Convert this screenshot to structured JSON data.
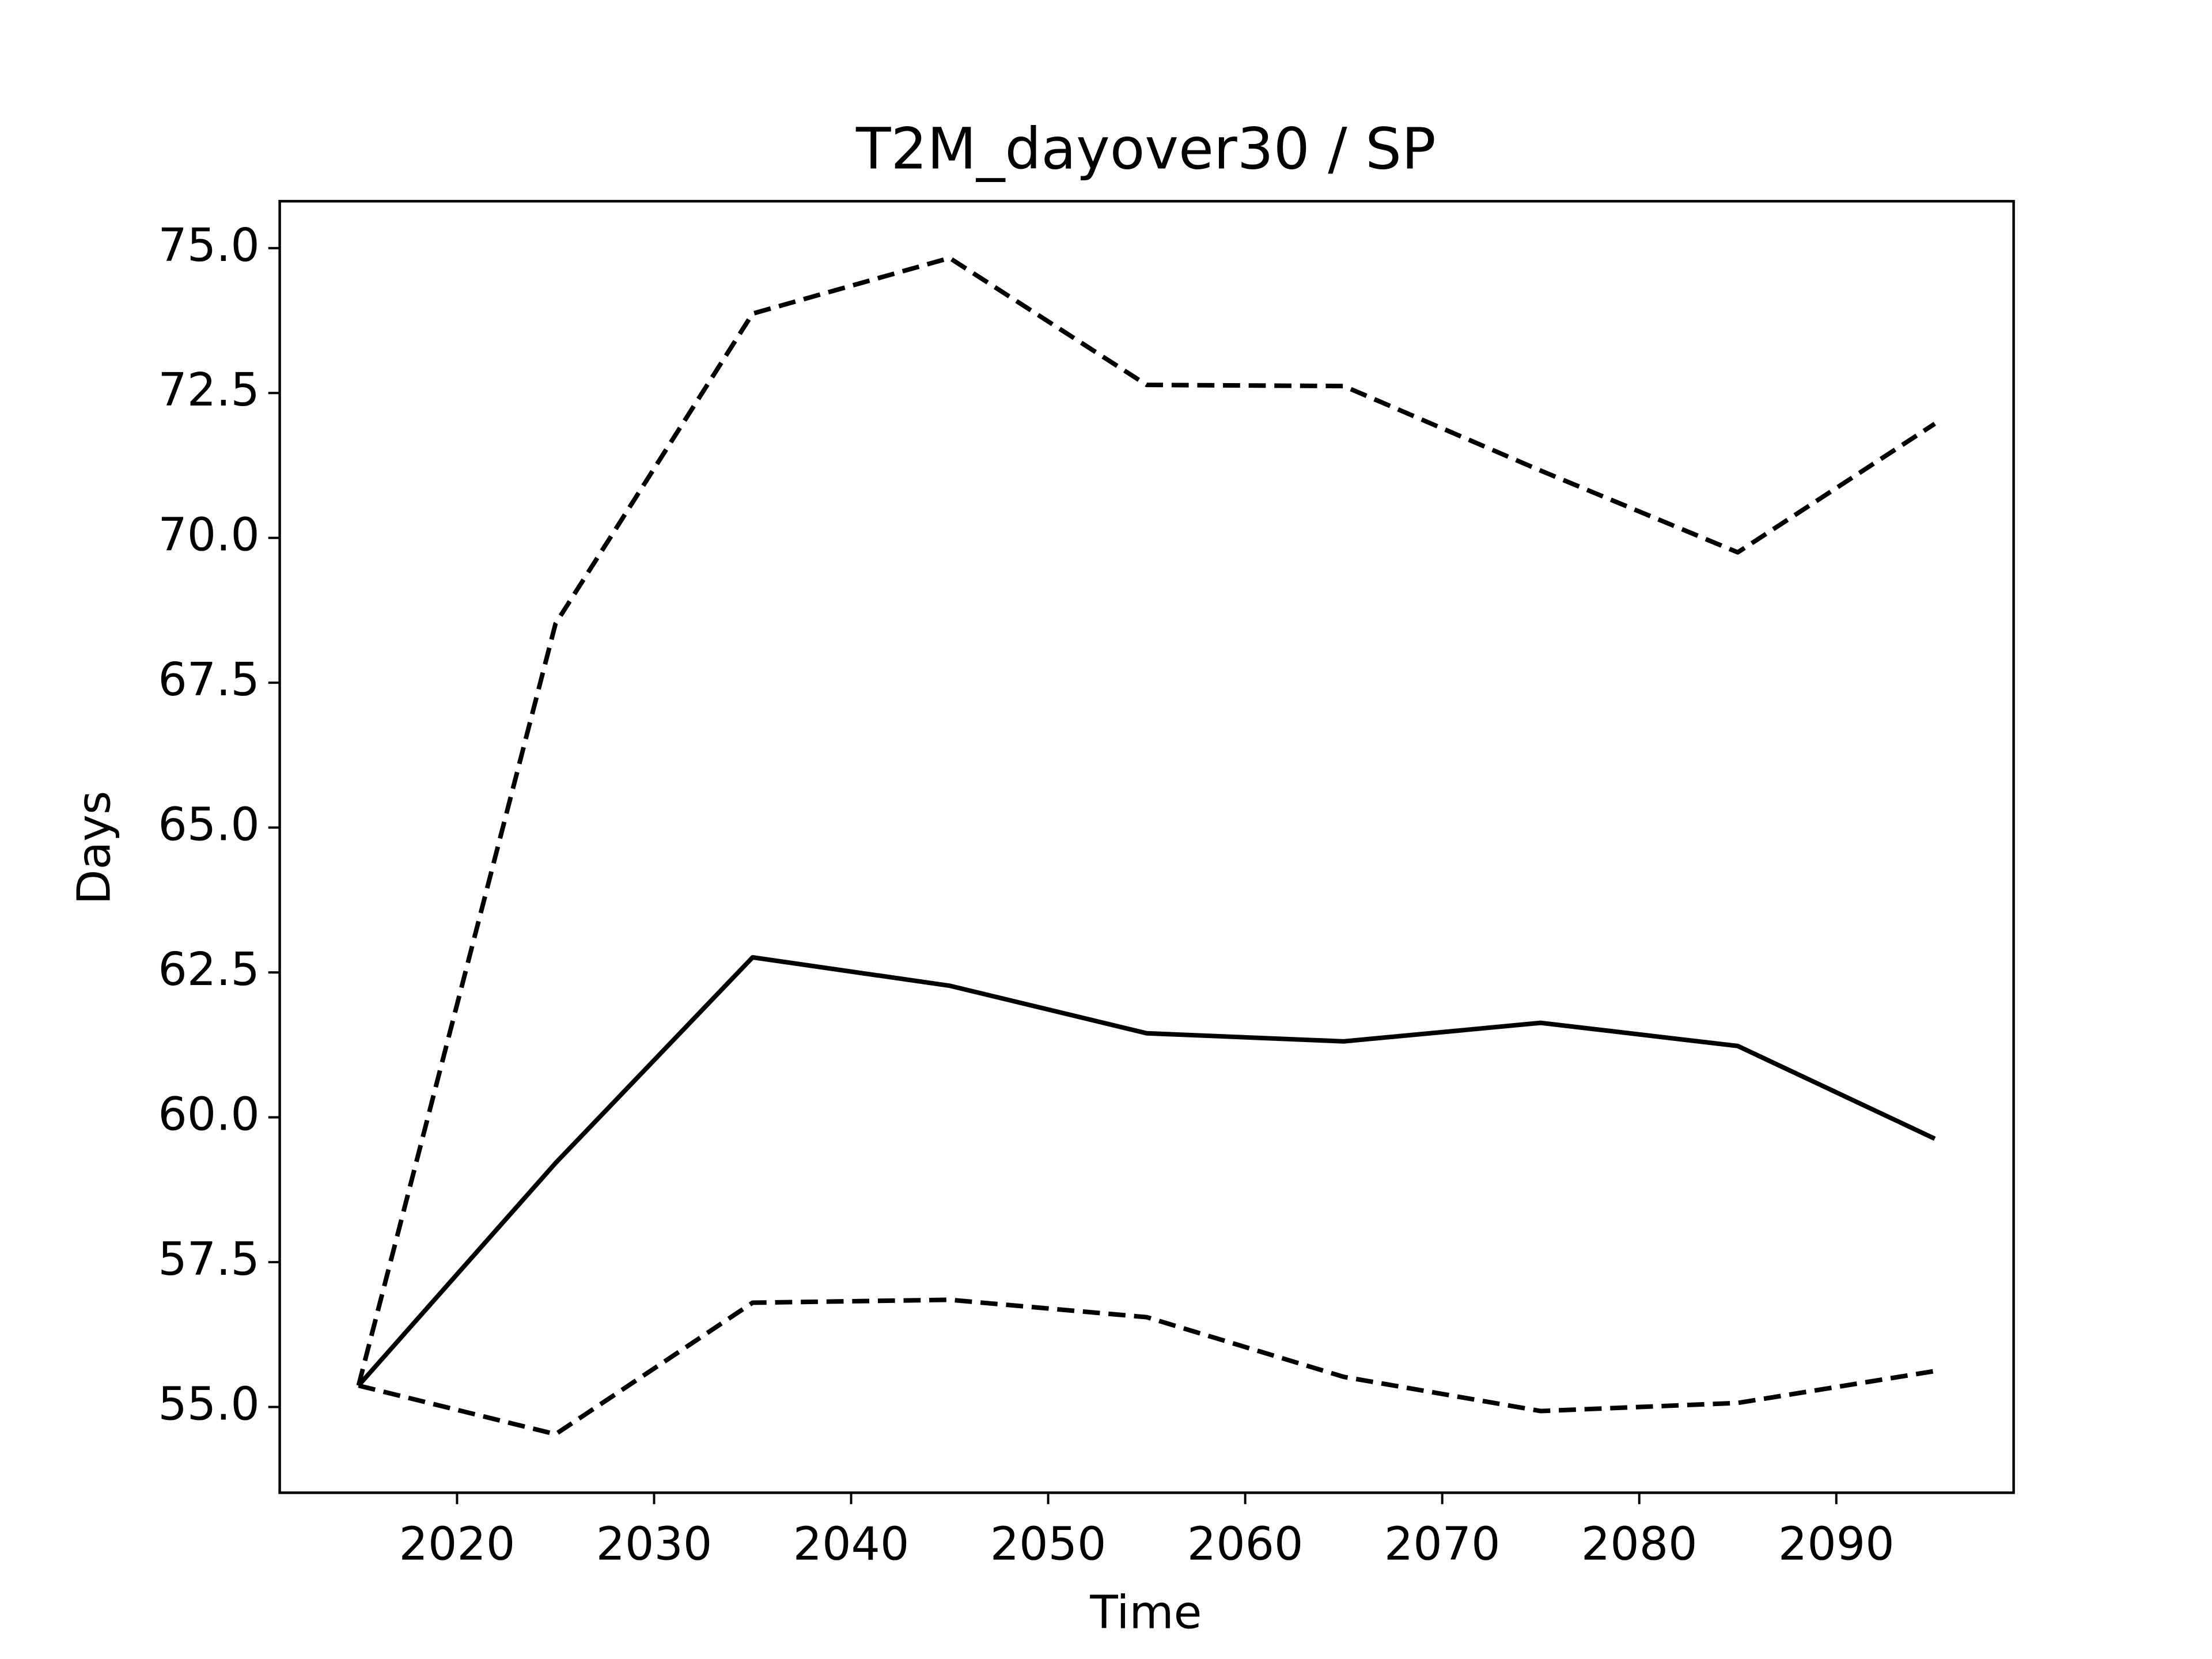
{
  "chart_data": {
    "type": "line",
    "title": "T2M_dayover30 / SP",
    "xlabel": "Time",
    "ylabel": "Days",
    "x": [
      2015,
      2025,
      2035,
      2045,
      2055,
      2065,
      2075,
      2085,
      2095
    ],
    "series": [
      {
        "color": "#000000",
        "linestyle": "solid",
        "values": [
          55.37,
          59.21,
          62.76,
          62.27,
          61.45,
          61.31,
          61.63,
          61.23,
          59.63
        ]
      },
      {
        "color": "#000000",
        "linestyle": "dashed",
        "values": [
          55.37,
          68.52,
          73.87,
          74.83,
          72.64,
          72.62,
          71.16,
          69.75,
          71.97
        ]
      },
      {
        "color": "#000000",
        "linestyle": "dashed",
        "values": [
          55.37,
          54.53,
          56.8,
          56.85,
          56.55,
          55.52,
          54.93,
          55.07,
          55.62
        ]
      }
    ],
    "xlim": [
      2011,
      2099
    ],
    "xticks": [
      2020,
      2030,
      2040,
      2050,
      2060,
      2070,
      2080,
      2090
    ],
    "ylim": [
      53.52,
      75.81
    ],
    "yticks": [
      {
        "value": 55,
        "label": "55.0"
      },
      {
        "value": 57.5,
        "label": "57.5"
      },
      {
        "value": 60,
        "label": "60.0"
      },
      {
        "value": 62.5,
        "label": "62.5"
      },
      {
        "value": 65,
        "label": "65.0"
      },
      {
        "value": 67.5,
        "label": "67.5"
      },
      {
        "value": 70,
        "label": "70.0"
      },
      {
        "value": 72.5,
        "label": "72.5"
      },
      {
        "value": 75,
        "label": "75.0"
      }
    ],
    "grid": false
  }
}
